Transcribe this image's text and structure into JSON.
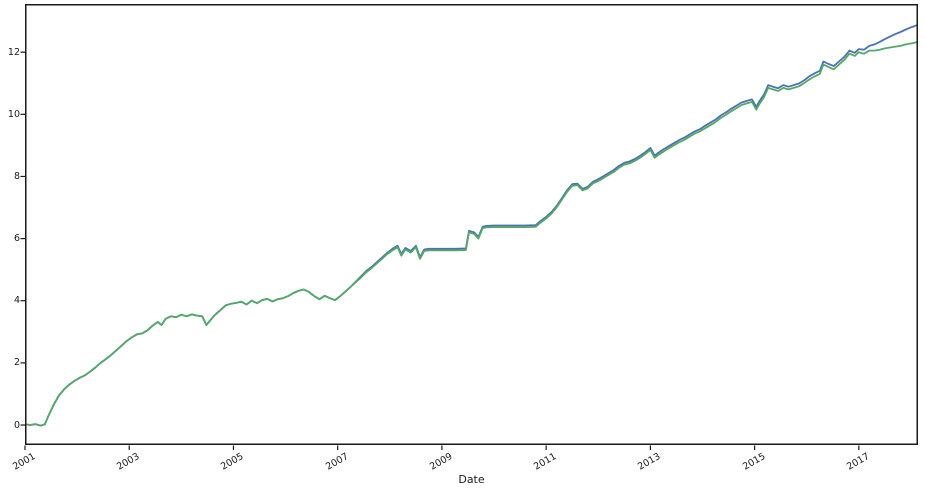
{
  "figure": {
    "background": "#ffffff",
    "frame_color": "#1a1a1a"
  },
  "chart_data": {
    "type": "line",
    "title": "",
    "xlabel": "Date",
    "ylabel": "",
    "grid": false,
    "legend_position": "none",
    "xlim": [
      2001.0,
      2018.135
    ],
    "ylim": [
      -0.643,
      13.55
    ],
    "axis_color": "#1a1a1a",
    "xticks": [
      {
        "value": 2001,
        "label": "2001"
      },
      {
        "value": 2003,
        "label": "2003"
      },
      {
        "value": 2005,
        "label": "2005"
      },
      {
        "value": 2007,
        "label": "2007"
      },
      {
        "value": 2009,
        "label": "2009"
      },
      {
        "value": 2011,
        "label": "2011"
      },
      {
        "value": 2013,
        "label": "2013"
      },
      {
        "value": 2015,
        "label": "2015"
      },
      {
        "value": 2017,
        "label": "2017"
      }
    ],
    "yticks": [
      {
        "value": 0,
        "label": "0"
      },
      {
        "value": 2,
        "label": "2"
      },
      {
        "value": 4,
        "label": "4"
      },
      {
        "value": 6,
        "label": "6"
      },
      {
        "value": 8,
        "label": "8"
      },
      {
        "value": 10,
        "label": "10"
      },
      {
        "value": 12,
        "label": "12"
      }
    ],
    "x": [
      2001.0,
      2001.1,
      2001.2,
      2001.3,
      2001.38,
      2001.45,
      2001.55,
      2001.65,
      2001.75,
      2001.85,
      2001.95,
      2002.05,
      2002.15,
      2002.25,
      2002.35,
      2002.45,
      2002.55,
      2002.65,
      2002.75,
      2002.85,
      2002.95,
      2003.05,
      2003.15,
      2003.25,
      2003.35,
      2003.45,
      2003.55,
      2003.62,
      2003.7,
      2003.8,
      2003.9,
      2004.0,
      2004.1,
      2004.2,
      2004.3,
      2004.4,
      2004.48,
      2004.56,
      2004.65,
      2004.75,
      2004.85,
      2004.95,
      2005.05,
      2005.15,
      2005.25,
      2005.35,
      2005.45,
      2005.55,
      2005.65,
      2005.75,
      2005.85,
      2005.95,
      2006.05,
      2006.15,
      2006.25,
      2006.35,
      2006.45,
      2006.55,
      2006.65,
      2006.75,
      2006.85,
      2006.95,
      2007.05,
      2007.15,
      2007.25,
      2007.35,
      2007.45,
      2007.55,
      2007.65,
      2007.75,
      2007.85,
      2007.95,
      2008.05,
      2008.15,
      2008.22,
      2008.3,
      2008.4,
      2008.5,
      2008.58,
      2008.66,
      2008.75,
      2008.85,
      2008.95,
      2009.1,
      2009.25,
      2009.4,
      2009.46,
      2009.52,
      2009.62,
      2009.7,
      2009.78,
      2009.85,
      2010.0,
      2010.2,
      2010.4,
      2010.6,
      2010.8,
      2010.88,
      2011.0,
      2011.1,
      2011.2,
      2011.3,
      2011.4,
      2011.5,
      2011.6,
      2011.7,
      2011.8,
      2011.9,
      2012.0,
      2012.1,
      2012.2,
      2012.3,
      2012.4,
      2012.5,
      2012.6,
      2012.7,
      2012.8,
      2012.9,
      2013.0,
      2013.08,
      2013.16,
      2013.25,
      2013.35,
      2013.45,
      2013.55,
      2013.65,
      2013.75,
      2013.85,
      2013.95,
      2014.05,
      2014.15,
      2014.25,
      2014.35,
      2014.45,
      2014.55,
      2014.65,
      2014.75,
      2014.85,
      2014.95,
      2015.03,
      2015.1,
      2015.18,
      2015.26,
      2015.35,
      2015.45,
      2015.55,
      2015.65,
      2015.75,
      2015.85,
      2015.95,
      2016.05,
      2016.15,
      2016.25,
      2016.32,
      2016.42,
      2016.52,
      2016.62,
      2016.72,
      2016.82,
      2016.92,
      2017.0,
      2017.1,
      2017.2,
      2017.3,
      2017.4,
      2017.5,
      2017.6,
      2017.7,
      2017.8,
      2017.9,
      2018.0,
      2018.07,
      2018.13
    ],
    "series": [
      {
        "id": "blue",
        "color": "#4c72b0",
        "y": [
          0.02,
          0.0,
          0.03,
          -0.02,
          0.02,
          0.3,
          0.65,
          0.95,
          1.15,
          1.3,
          1.42,
          1.52,
          1.6,
          1.72,
          1.85,
          2.0,
          2.12,
          2.25,
          2.4,
          2.55,
          2.7,
          2.82,
          2.92,
          2.95,
          3.05,
          3.2,
          3.32,
          3.22,
          3.42,
          3.5,
          3.47,
          3.55,
          3.5,
          3.56,
          3.52,
          3.5,
          3.22,
          3.38,
          3.55,
          3.7,
          3.85,
          3.9,
          3.93,
          3.97,
          3.88,
          4.0,
          3.92,
          4.02,
          4.06,
          3.98,
          4.05,
          4.08,
          4.15,
          4.25,
          4.32,
          4.36,
          4.28,
          4.15,
          4.05,
          4.16,
          4.08,
          4.02,
          4.15,
          4.3,
          4.45,
          4.62,
          4.79,
          4.96,
          5.09,
          5.24,
          5.39,
          5.54,
          5.67,
          5.77,
          5.5,
          5.7,
          5.6,
          5.77,
          5.4,
          5.65,
          5.67,
          5.67,
          5.67,
          5.67,
          5.67,
          5.68,
          5.68,
          6.25,
          6.2,
          6.05,
          6.38,
          6.41,
          6.42,
          6.42,
          6.42,
          6.42,
          6.43,
          6.55,
          6.7,
          6.85,
          7.05,
          7.3,
          7.55,
          7.75,
          7.77,
          7.6,
          7.67,
          7.83,
          7.91,
          8.01,
          8.11,
          8.21,
          8.34,
          8.44,
          8.48,
          8.56,
          8.66,
          8.78,
          8.92,
          8.67,
          8.77,
          8.87,
          8.97,
          9.07,
          9.17,
          9.25,
          9.35,
          9.45,
          9.52,
          9.63,
          9.73,
          9.83,
          9.96,
          10.06,
          10.18,
          10.28,
          10.38,
          10.43,
          10.48,
          10.24,
          10.44,
          10.64,
          10.94,
          10.89,
          10.84,
          10.94,
          10.89,
          10.94,
          10.99,
          11.09,
          11.22,
          11.32,
          11.4,
          11.7,
          11.62,
          11.55,
          11.7,
          11.85,
          12.05,
          11.98,
          12.1,
          12.08,
          12.2,
          12.25,
          12.33,
          12.42,
          12.5,
          12.58,
          12.65,
          12.73,
          12.8,
          12.84,
          12.88
        ]
      },
      {
        "id": "green",
        "color": "#55a868",
        "y": [
          0.02,
          0.0,
          0.03,
          -0.02,
          0.02,
          0.3,
          0.65,
          0.95,
          1.15,
          1.3,
          1.42,
          1.52,
          1.6,
          1.72,
          1.85,
          2.0,
          2.12,
          2.25,
          2.4,
          2.55,
          2.7,
          2.82,
          2.92,
          2.95,
          3.05,
          3.2,
          3.32,
          3.22,
          3.42,
          3.5,
          3.47,
          3.55,
          3.5,
          3.56,
          3.52,
          3.5,
          3.22,
          3.38,
          3.55,
          3.7,
          3.85,
          3.9,
          3.93,
          3.97,
          3.88,
          4.0,
          3.92,
          4.02,
          4.06,
          3.98,
          4.05,
          4.08,
          4.15,
          4.25,
          4.32,
          4.36,
          4.28,
          4.15,
          4.05,
          4.16,
          4.08,
          4.02,
          4.15,
          4.3,
          4.45,
          4.6,
          4.75,
          4.92,
          5.05,
          5.2,
          5.35,
          5.5,
          5.62,
          5.72,
          5.45,
          5.65,
          5.55,
          5.72,
          5.35,
          5.6,
          5.62,
          5.62,
          5.62,
          5.62,
          5.62,
          5.63,
          5.63,
          6.2,
          6.15,
          6.0,
          6.33,
          6.36,
          6.37,
          6.37,
          6.37,
          6.37,
          6.38,
          6.5,
          6.65,
          6.8,
          7.0,
          7.25,
          7.5,
          7.7,
          7.72,
          7.55,
          7.62,
          7.78,
          7.85,
          7.95,
          8.05,
          8.15,
          8.28,
          8.38,
          8.42,
          8.5,
          8.6,
          8.72,
          8.85,
          8.6,
          8.7,
          8.8,
          8.9,
          9.0,
          9.1,
          9.18,
          9.28,
          9.38,
          9.45,
          9.55,
          9.65,
          9.75,
          9.88,
          9.98,
          10.1,
          10.2,
          10.3,
          10.35,
          10.4,
          10.15,
          10.35,
          10.55,
          10.85,
          10.8,
          10.75,
          10.85,
          10.8,
          10.85,
          10.9,
          11.0,
          11.12,
          11.22,
          11.3,
          11.6,
          11.52,
          11.45,
          11.6,
          11.75,
          11.95,
          11.88,
          12.0,
          11.95,
          12.05,
          12.05,
          12.08,
          12.12,
          12.15,
          12.18,
          12.2,
          12.25,
          12.28,
          12.3,
          12.33
        ]
      }
    ]
  }
}
